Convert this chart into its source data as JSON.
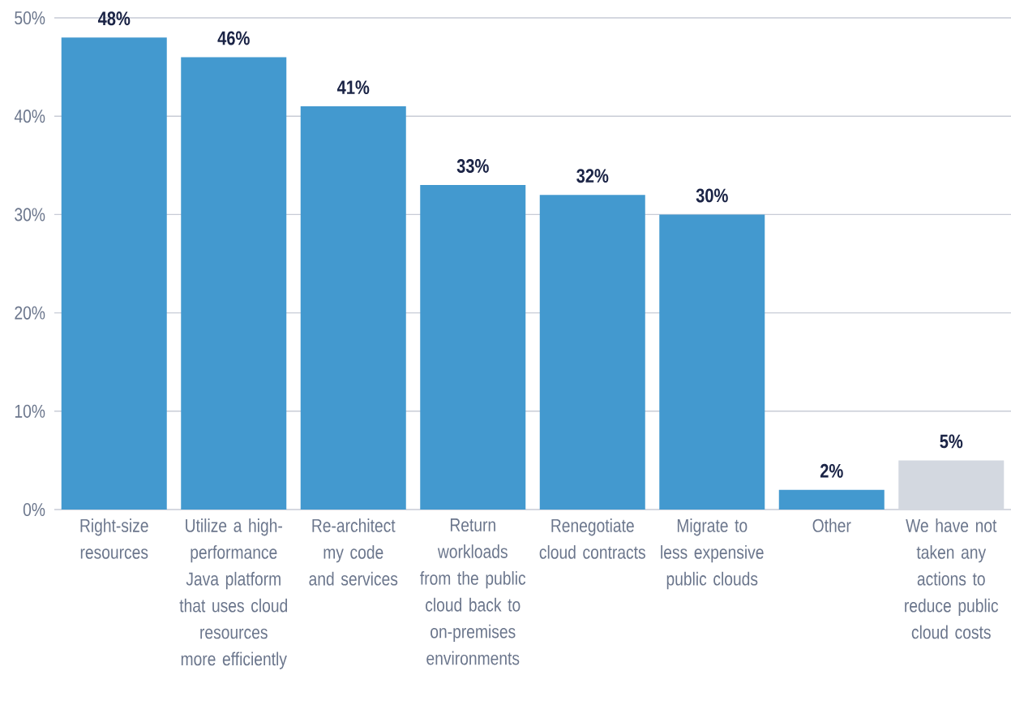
{
  "chart_data": {
    "type": "bar",
    "categories": [
      "Right-size resources",
      "Utilize a high-performance Java platform that uses cloud resources more efficiently",
      "Re-architect my code and services",
      "Return workloads from the public cloud back to on-premises environments",
      "Renegotiate cloud contracts",
      "Migrate to less expensive public clouds",
      "Other",
      "We have not taken any actions to reduce public cloud costs"
    ],
    "values": [
      48,
      46,
      41,
      33,
      32,
      30,
      2,
      5
    ],
    "colors": [
      "#4399cf",
      "#4399cf",
      "#4399cf",
      "#4399cf",
      "#4399cf",
      "#4399cf",
      "#4399cf",
      "#d3d8e0"
    ],
    "value_labels": [
      "48%",
      "46%",
      "41%",
      "33%",
      "32%",
      "30%",
      "2%",
      "5%"
    ],
    "ylim": [
      0,
      50
    ],
    "yticks": [
      {
        "value": 0,
        "label": "0%"
      },
      {
        "value": 10,
        "label": "10%"
      },
      {
        "value": 20,
        "label": "20%"
      },
      {
        "value": 30,
        "label": "30%"
      },
      {
        "value": 40,
        "label": "40%"
      },
      {
        "value": 50,
        "label": "50%"
      }
    ],
    "grid": "y"
  }
}
